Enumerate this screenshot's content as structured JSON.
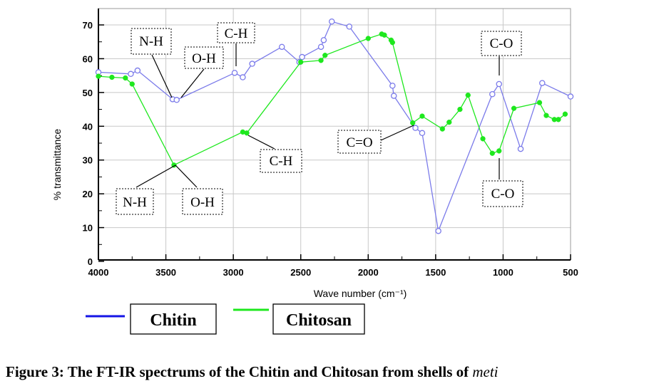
{
  "chart_data": {
    "type": "line",
    "xlabel": "Wave number (cm⁻¹)",
    "ylabel": "% transmittance",
    "xlim": [
      4000,
      500
    ],
    "ylim": [
      0,
      75
    ],
    "x_ticks": [
      4000,
      3500,
      3000,
      2500,
      2000,
      1500,
      1000,
      500
    ],
    "y_ticks": [
      0,
      10,
      20,
      30,
      40,
      50,
      60,
      70
    ],
    "grid": true,
    "series": [
      {
        "name": "Chitin",
        "color": "#7b7bea",
        "marker": "open-circle",
        "points": [
          [
            4000,
            56
          ],
          [
            3760,
            55.5
          ],
          [
            3710,
            56.5
          ],
          [
            3450,
            48
          ],
          [
            3420,
            47.8
          ],
          [
            2990,
            55.8
          ],
          [
            2930,
            54.5
          ],
          [
            2860,
            58.5
          ],
          [
            2640,
            63.5
          ],
          [
            2510,
            59
          ],
          [
            2490,
            60.5
          ],
          [
            2350,
            63.5
          ],
          [
            2330,
            65.5
          ],
          [
            2270,
            71
          ],
          [
            2140,
            69.5
          ],
          [
            1820,
            52
          ],
          [
            1810,
            49
          ],
          [
            1650,
            39.5
          ],
          [
            1600,
            38
          ],
          [
            1480,
            9
          ],
          [
            1080,
            49.5
          ],
          [
            1030,
            52.5
          ],
          [
            870,
            33.3
          ],
          [
            710,
            52.8
          ],
          [
            500,
            48.8
          ]
        ]
      },
      {
        "name": "Chitosan",
        "color": "#1ee81e",
        "marker": "filled-circle",
        "points": [
          [
            4000,
            54.8
          ],
          [
            3900,
            54.5
          ],
          [
            3800,
            54.3
          ],
          [
            3750,
            52.5
          ],
          [
            3440,
            28.5
          ],
          [
            2930,
            38.3
          ],
          [
            2900,
            38
          ],
          [
            2500,
            59
          ],
          [
            2350,
            59.5
          ],
          [
            2320,
            61
          ],
          [
            2000,
            66
          ],
          [
            1900,
            67.3
          ],
          [
            1880,
            67
          ],
          [
            1830,
            65.5
          ],
          [
            1820,
            64.8
          ],
          [
            1670,
            41
          ],
          [
            1600,
            43
          ],
          [
            1450,
            39.2
          ],
          [
            1400,
            41.2
          ],
          [
            1320,
            45
          ],
          [
            1260,
            49.2
          ],
          [
            1150,
            36.3
          ],
          [
            1080,
            32
          ],
          [
            1030,
            32.7
          ],
          [
            920,
            45.3
          ],
          [
            730,
            47
          ],
          [
            680,
            43.2
          ],
          [
            620,
            42
          ],
          [
            590,
            42
          ],
          [
            540,
            43.6
          ]
        ]
      }
    ],
    "annotations": [
      {
        "text": "N-H",
        "series": "Chitin"
      },
      {
        "text": "O-H",
        "series": "Chitin"
      },
      {
        "text": "C-H",
        "series": "Chitin"
      },
      {
        "text": "C=O",
        "series": "Chitin"
      },
      {
        "text": "C-O",
        "series": "Chitin"
      },
      {
        "text": "N-H",
        "series": "Chitosan"
      },
      {
        "text": "O-H",
        "series": "Chitosan"
      },
      {
        "text": "C-H",
        "series": "Chitosan"
      },
      {
        "text": "C-O",
        "series": "Chitosan"
      }
    ],
    "legend": {
      "placement": "bottom-left",
      "items": [
        {
          "label": "Chitin",
          "color": "#1414e6"
        },
        {
          "label": "Chitosan",
          "color": "#1ee81e"
        }
      ]
    }
  },
  "caption": {
    "text": "Figure 3: The FT-IR spectrums of the Chitin and Chitosan from shells of ",
    "italic": "meti"
  }
}
